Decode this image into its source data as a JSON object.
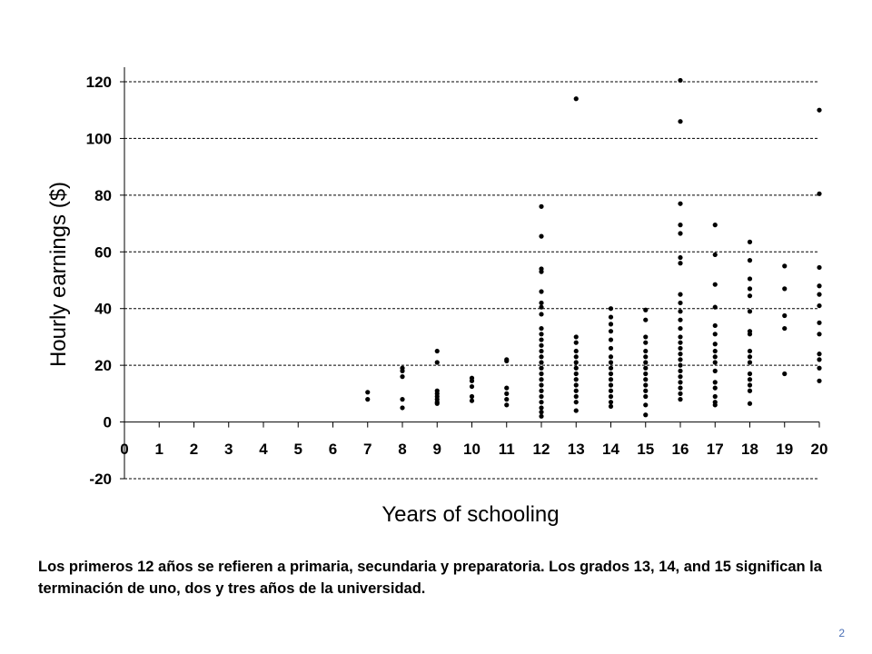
{
  "chart_data": {
    "type": "scatter",
    "title": "",
    "xlabel": "Years of schooling",
    "ylabel": "Hourly earnings ($)",
    "xlim": [
      0,
      20
    ],
    "ylim": [
      -20,
      120
    ],
    "x_ticks": [
      "0",
      "1",
      "2",
      "3",
      "4",
      "5",
      "6",
      "7",
      "8",
      "9",
      "10",
      "11",
      "12",
      "13",
      "14",
      "15",
      "16",
      "17",
      "18",
      "19",
      "20"
    ],
    "y_ticks": [
      "-20",
      "0",
      "20",
      "40",
      "60",
      "80",
      "100",
      "120"
    ],
    "grid": "horizontal dashed",
    "series": [
      {
        "points": [
          [
            7,
            10.5
          ],
          [
            7,
            8
          ],
          [
            8,
            19
          ],
          [
            8,
            18
          ],
          [
            8,
            16
          ],
          [
            8,
            8
          ],
          [
            8,
            5
          ],
          [
            9,
            25
          ],
          [
            9,
            21
          ],
          [
            9,
            11
          ],
          [
            9,
            10
          ],
          [
            9,
            9
          ],
          [
            9,
            8
          ],
          [
            9,
            7
          ],
          [
            9,
            6.5
          ],
          [
            10,
            15.5
          ],
          [
            10,
            14.5
          ],
          [
            10,
            12.5
          ],
          [
            10,
            9
          ],
          [
            10,
            7.5
          ],
          [
            11,
            22
          ],
          [
            11,
            21.5
          ],
          [
            11,
            12
          ],
          [
            11,
            10
          ],
          [
            11,
            8
          ],
          [
            11,
            6
          ],
          [
            12,
            76
          ],
          [
            12,
            65.5
          ],
          [
            12,
            54
          ],
          [
            12,
            53
          ],
          [
            12,
            46
          ],
          [
            12,
            42
          ],
          [
            12,
            40.5
          ],
          [
            12,
            38
          ],
          [
            12,
            33
          ],
          [
            12,
            31
          ],
          [
            12,
            29
          ],
          [
            12,
            27
          ],
          [
            12,
            25
          ],
          [
            12,
            23
          ],
          [
            12,
            21
          ],
          [
            12,
            19
          ],
          [
            12,
            17
          ],
          [
            12,
            15
          ],
          [
            12,
            13
          ],
          [
            12,
            11
          ],
          [
            12,
            9
          ],
          [
            12,
            7
          ],
          [
            12,
            5
          ],
          [
            12,
            3.5
          ],
          [
            12,
            2
          ],
          [
            13,
            114
          ],
          [
            13,
            30
          ],
          [
            13,
            28
          ],
          [
            13,
            25
          ],
          [
            13,
            23
          ],
          [
            13,
            21
          ],
          [
            13,
            19
          ],
          [
            13,
            17
          ],
          [
            13,
            15
          ],
          [
            13,
            13
          ],
          [
            13,
            11
          ],
          [
            13,
            9
          ],
          [
            13,
            7
          ],
          [
            13,
            4
          ],
          [
            14,
            40
          ],
          [
            14,
            37
          ],
          [
            14,
            34.5
          ],
          [
            14,
            32
          ],
          [
            14,
            29
          ],
          [
            14,
            26
          ],
          [
            14,
            23
          ],
          [
            14,
            21
          ],
          [
            14,
            19
          ],
          [
            14,
            17
          ],
          [
            14,
            15
          ],
          [
            14,
            13
          ],
          [
            14,
            11
          ],
          [
            14,
            9
          ],
          [
            14,
            7
          ],
          [
            14,
            5.5
          ],
          [
            15,
            39.5
          ],
          [
            15,
            36
          ],
          [
            15,
            30
          ],
          [
            15,
            28
          ],
          [
            15,
            25
          ],
          [
            15,
            23
          ],
          [
            15,
            21
          ],
          [
            15,
            19
          ],
          [
            15,
            17
          ],
          [
            15,
            15
          ],
          [
            15,
            13
          ],
          [
            15,
            11
          ],
          [
            15,
            9
          ],
          [
            15,
            6
          ],
          [
            15,
            2.5
          ],
          [
            16,
            120.5
          ],
          [
            16,
            106
          ],
          [
            16,
            77
          ],
          [
            16,
            69.5
          ],
          [
            16,
            66.5
          ],
          [
            16,
            58
          ],
          [
            16,
            56
          ],
          [
            16,
            45
          ],
          [
            16,
            42
          ],
          [
            16,
            39
          ],
          [
            16,
            36
          ],
          [
            16,
            33
          ],
          [
            16,
            30
          ],
          [
            16,
            28
          ],
          [
            16,
            26
          ],
          [
            16,
            24
          ],
          [
            16,
            22
          ],
          [
            16,
            20
          ],
          [
            16,
            18
          ],
          [
            16,
            16
          ],
          [
            16,
            14
          ],
          [
            16,
            12
          ],
          [
            16,
            10
          ],
          [
            16,
            8
          ],
          [
            17,
            69.5
          ],
          [
            17,
            59
          ],
          [
            17,
            48.5
          ],
          [
            17,
            40.5
          ],
          [
            17,
            34
          ],
          [
            17,
            31
          ],
          [
            17,
            27.5
          ],
          [
            17,
            25
          ],
          [
            17,
            23
          ],
          [
            17,
            21
          ],
          [
            17,
            18
          ],
          [
            17,
            14
          ],
          [
            17,
            12
          ],
          [
            17,
            9
          ],
          [
            17,
            7
          ],
          [
            17,
            6
          ],
          [
            18,
            63.5
          ],
          [
            18,
            57
          ],
          [
            18,
            50.5
          ],
          [
            18,
            47
          ],
          [
            18,
            44.5
          ],
          [
            18,
            39
          ],
          [
            18,
            32
          ],
          [
            18,
            31
          ],
          [
            18,
            25
          ],
          [
            18,
            23
          ],
          [
            18,
            21
          ],
          [
            18,
            17
          ],
          [
            18,
            15
          ],
          [
            18,
            13
          ],
          [
            18,
            11
          ],
          [
            18,
            6.5
          ],
          [
            19,
            55
          ],
          [
            19,
            47
          ],
          [
            19,
            37.5
          ],
          [
            19,
            33
          ],
          [
            19,
            17
          ],
          [
            20,
            110
          ],
          [
            20,
            80.5
          ],
          [
            20,
            54.5
          ],
          [
            20,
            48
          ],
          [
            20,
            45
          ],
          [
            20,
            41
          ],
          [
            20,
            35
          ],
          [
            20,
            31
          ],
          [
            20,
            24
          ],
          [
            20,
            22
          ],
          [
            20,
            19
          ],
          [
            20,
            14.5
          ]
        ]
      }
    ]
  },
  "caption": "Los primeros 12 años se refieren a primaria, secundaria y preparatoria.  Los grados 13, 14, and 15 significan la terminación de uno, dos y tres años de la universidad.",
  "page_number": "2"
}
